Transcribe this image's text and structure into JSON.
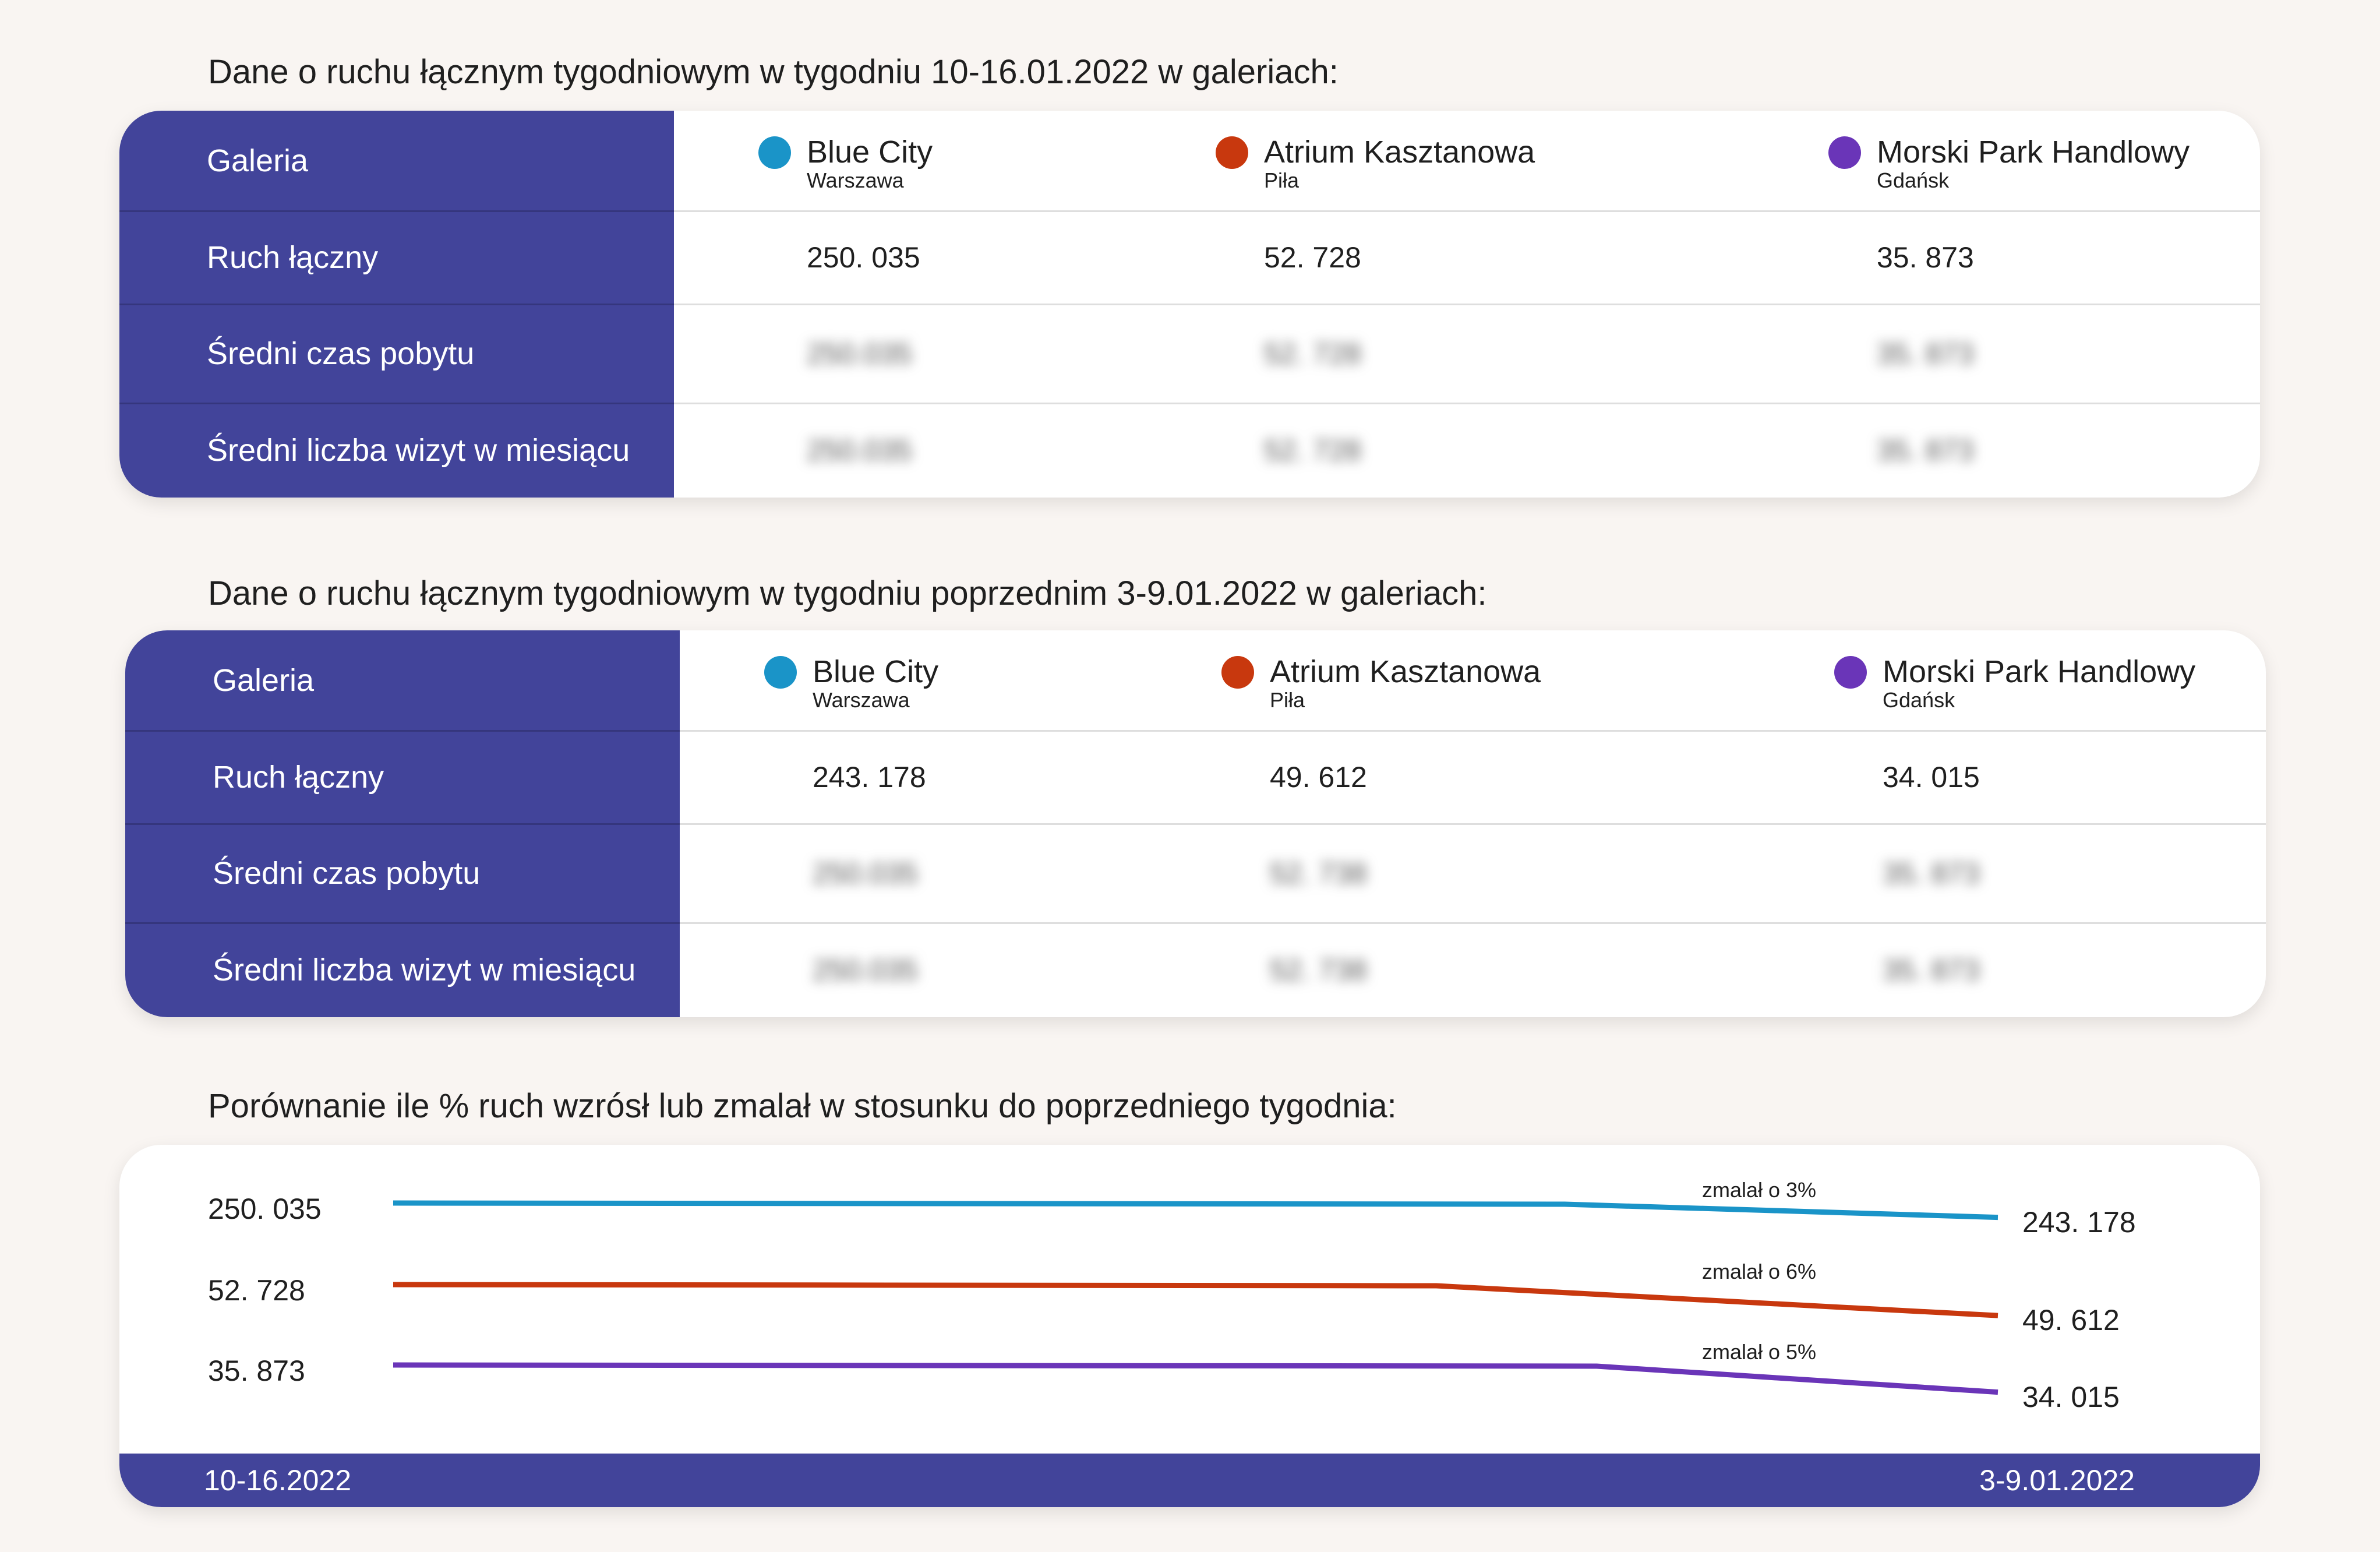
{
  "section1": {
    "title": "Dane o ruchu łącznym tygodniowym w tygodniu 10-16.01.2022 w galeriach:",
    "row_labels": [
      "Galeria",
      "Ruch łączny",
      "Średni czas pobytu",
      "Średni liczba wizyt w miesiącu"
    ],
    "galleries": [
      {
        "name": "Blue City",
        "city": "Warszawa",
        "color": "#1a94c8"
      },
      {
        "name": "Atrium Kasztanowa",
        "city": "Piła",
        "color": "#c8380e"
      },
      {
        "name": "Morski Park Handlowy",
        "city": "Gdańsk",
        "color": "#6a35b8"
      }
    ],
    "traffic": [
      "250. 035",
      "52. 728",
      "35. 873"
    ],
    "blurred_row1": [
      "250.035",
      "52. 728",
      "35. 873"
    ],
    "blurred_row2": [
      "250.035",
      "52. 728",
      "35. 873"
    ]
  },
  "section2": {
    "title": "Dane o ruchu łącznym tygodniowym w tygodniu poprzednim  3-9.01.2022 w galeriach:",
    "row_labels": [
      "Galeria",
      "Ruch łączny",
      "Średni czas pobytu",
      "Średni liczba wizyt w miesiącu"
    ],
    "galleries": [
      {
        "name": "Blue City",
        "city": "Warszawa",
        "color": "#1a94c8"
      },
      {
        "name": "Atrium Kasztanowa",
        "city": "Piła",
        "color": "#c8380e"
      },
      {
        "name": "Morski Park Handlowy",
        "city": "Gdańsk",
        "color": "#6a35b8"
      }
    ],
    "traffic": [
      "243. 178",
      "49. 612",
      "34. 015"
    ],
    "blurred_row1": [
      "250.035",
      "52. 738",
      "35. 873"
    ],
    "blurred_row2": [
      "250.035",
      "52. 738",
      "35. 873"
    ]
  },
  "section3": {
    "title": "Porównanie ile % ruch wzrósł lub zmalał w stosunku do poprzedniego tygodnia:"
  },
  "chart_data": {
    "type": "line",
    "title": "Porównanie ile % ruch wzrósł lub zmalał w stosunku do poprzedniego tygodnia:",
    "x": [
      "10-16.2022",
      "3-9.01.2022"
    ],
    "series": [
      {
        "name": "Blue City",
        "color": "#1a94c8",
        "values": [
          250035,
          243178
        ],
        "start_label": "250. 035",
        "end_label": "243. 178",
        "note": "zmalał o 3%"
      },
      {
        "name": "Atrium Kasztanowa",
        "color": "#c8380e",
        "values": [
          52728,
          49612
        ],
        "start_label": "52. 728",
        "end_label": "49. 612",
        "note": "zmalał o 6%"
      },
      {
        "name": "Morski Park Handlowy",
        "color": "#6a35b8",
        "values": [
          35873,
          34015
        ],
        "start_label": "35. 873",
        "end_label": "34. 015",
        "note": "zmalał o 5%"
      }
    ],
    "xlabel": "",
    "ylabel": "",
    "grid": false,
    "legend": "none"
  }
}
